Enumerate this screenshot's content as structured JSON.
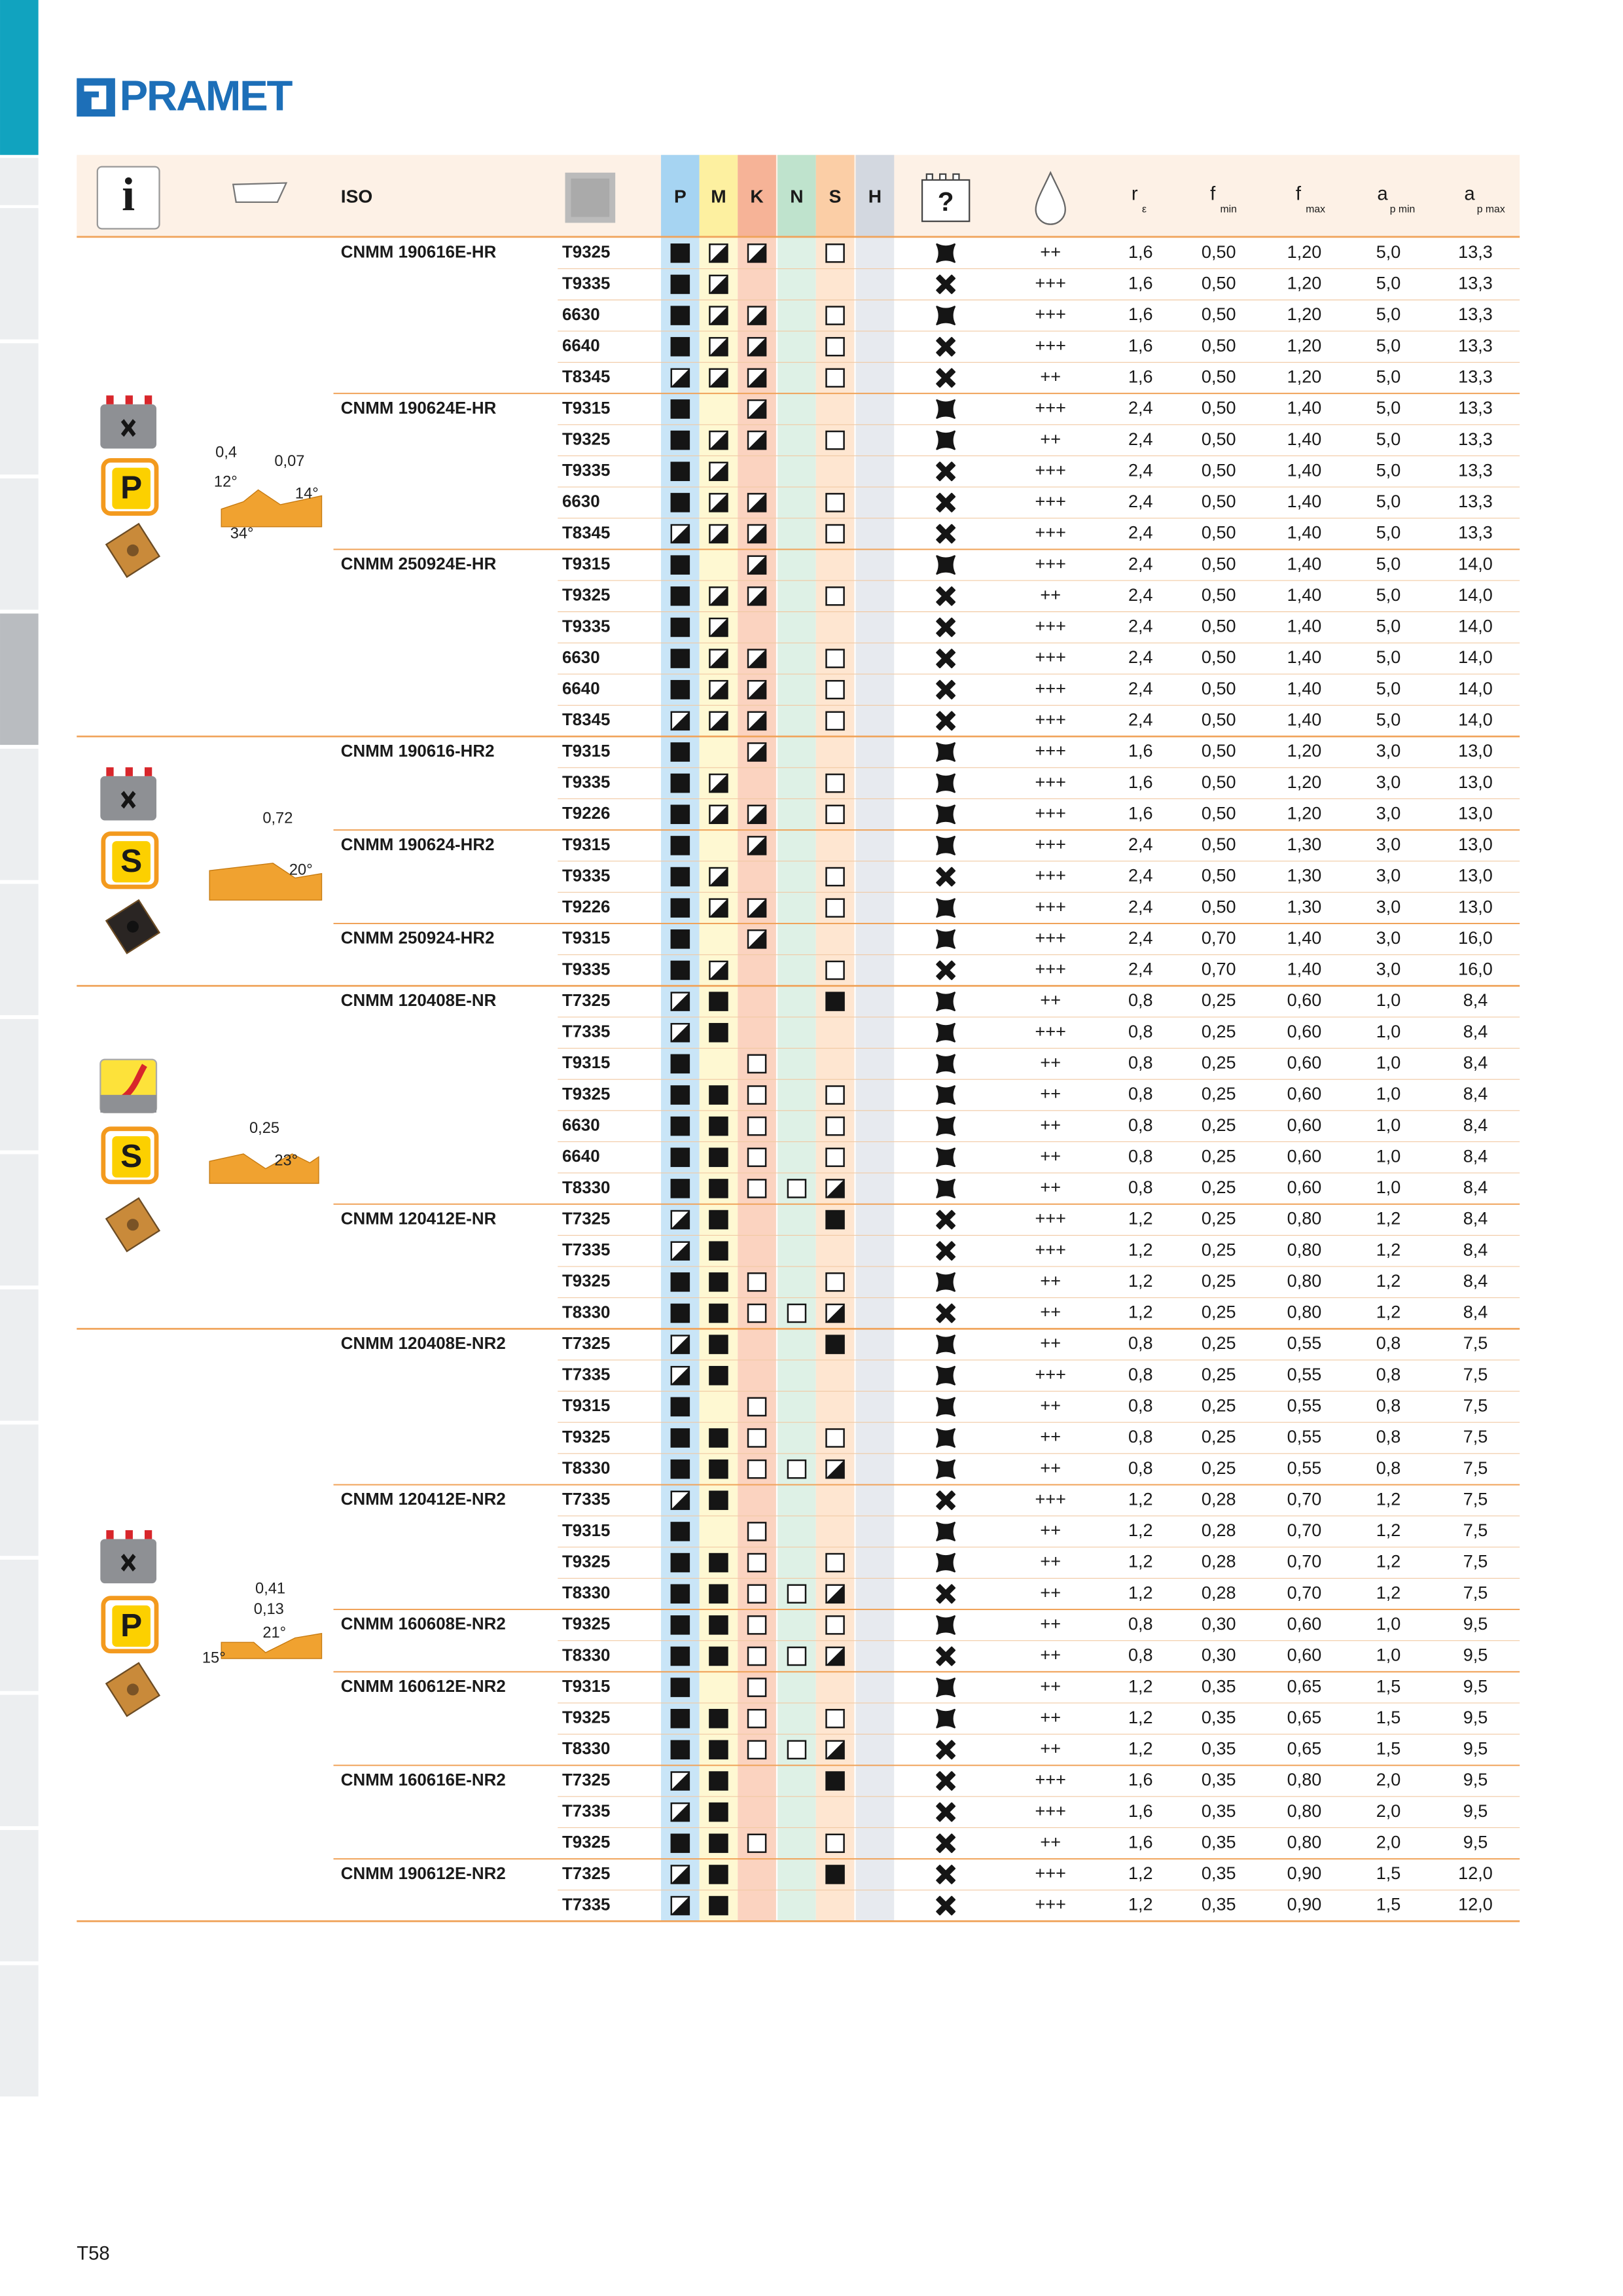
{
  "header": {
    "logo": "PRAMET",
    "iso": "ISO",
    "materials": [
      "P",
      "M",
      "K",
      "N",
      "S",
      "H"
    ],
    "params": [
      {
        "main": "r",
        "sub": "ε"
      },
      {
        "main": "f",
        "sub": "min"
      },
      {
        "main": "f",
        "sub": "max"
      },
      {
        "main": "a",
        "sub": "p min"
      },
      {
        "main": "a",
        "sub": "p max"
      }
    ]
  },
  "sections": [
    {
      "badge": "P",
      "diagram": [
        "0,4",
        "0,07",
        "12°",
        "14°",
        "34°"
      ],
      "groups": [
        {
          "iso": "CNMM 190616E-HR",
          "rows": [
            [
              "T9325",
              "F",
              "D",
              "D",
              null,
              "E",
              null,
              "wave",
              "++",
              "1,6",
              "0,50",
              "1,20",
              "5,0",
              "13,3"
            ],
            [
              "T9335",
              "F",
              "D",
              null,
              null,
              null,
              null,
              "cross",
              "+++",
              "1,6",
              "0,50",
              "1,20",
              "5,0",
              "13,3"
            ],
            [
              "6630",
              "F",
              "D",
              "D",
              null,
              "E",
              null,
              "wave",
              "+++",
              "1,6",
              "0,50",
              "1,20",
              "5,0",
              "13,3"
            ],
            [
              "6640",
              "F",
              "D",
              "D",
              null,
              "E",
              null,
              "cross",
              "+++",
              "1,6",
              "0,50",
              "1,20",
              "5,0",
              "13,3"
            ],
            [
              "T8345",
              "D",
              "D",
              "D",
              null,
              "E",
              null,
              "cross",
              "++",
              "1,6",
              "0,50",
              "1,20",
              "5,0",
              "13,3"
            ]
          ]
        },
        {
          "iso": "CNMM 190624E-HR",
          "rows": [
            [
              "T9315",
              "F",
              null,
              "D",
              null,
              null,
              null,
              "wave",
              "+++",
              "2,4",
              "0,50",
              "1,40",
              "5,0",
              "13,3"
            ],
            [
              "T9325",
              "F",
              "D",
              "D",
              null,
              "E",
              null,
              "wave",
              "++",
              "2,4",
              "0,50",
              "1,40",
              "5,0",
              "13,3"
            ],
            [
              "T9335",
              "F",
              "D",
              null,
              null,
              null,
              null,
              "cross",
              "+++",
              "2,4",
              "0,50",
              "1,40",
              "5,0",
              "13,3"
            ],
            [
              "6630",
              "F",
              "D",
              "D",
              null,
              "E",
              null,
              "cross",
              "+++",
              "2,4",
              "0,50",
              "1,40",
              "5,0",
              "13,3"
            ],
            [
              "T8345",
              "D",
              "D",
              "D",
              null,
              "E",
              null,
              "cross",
              "+++",
              "2,4",
              "0,50",
              "1,40",
              "5,0",
              "13,3"
            ]
          ]
        },
        {
          "iso": "CNMM 250924E-HR",
          "rows": [
            [
              "T9315",
              "F",
              null,
              "D",
              null,
              null,
              null,
              "wave",
              "+++",
              "2,4",
              "0,50",
              "1,40",
              "5,0",
              "14,0"
            ],
            [
              "T9325",
              "F",
              "D",
              "D",
              null,
              "E",
              null,
              "cross",
              "++",
              "2,4",
              "0,50",
              "1,40",
              "5,0",
              "14,0"
            ],
            [
              "T9335",
              "F",
              "D",
              null,
              null,
              null,
              null,
              "cross",
              "+++",
              "2,4",
              "0,50",
              "1,40",
              "5,0",
              "14,0"
            ],
            [
              "6630",
              "F",
              "D",
              "D",
              null,
              "E",
              null,
              "cross",
              "+++",
              "2,4",
              "0,50",
              "1,40",
              "5,0",
              "14,0"
            ],
            [
              "6640",
              "F",
              "D",
              "D",
              null,
              "E",
              null,
              "cross",
              "+++",
              "2,4",
              "0,50",
              "1,40",
              "5,0",
              "14,0"
            ],
            [
              "T8345",
              "D",
              "D",
              "D",
              null,
              "E",
              null,
              "cross",
              "+++",
              "2,4",
              "0,50",
              "1,40",
              "5,0",
              "14,0"
            ]
          ]
        }
      ]
    },
    {
      "badge": "S",
      "diagram": [
        "0,72",
        "20°"
      ],
      "groups": [
        {
          "iso": "CNMM 190616-HR2",
          "rows": [
            [
              "T9315",
              "F",
              null,
              "D",
              null,
              null,
              null,
              "wave",
              "+++",
              "1,6",
              "0,50",
              "1,20",
              "3,0",
              "13,0"
            ],
            [
              "T9335",
              "F",
              "D",
              null,
              null,
              "E",
              null,
              "wave",
              "+++",
              "1,6",
              "0,50",
              "1,20",
              "3,0",
              "13,0"
            ],
            [
              "T9226",
              "F",
              "D",
              "D",
              null,
              "E",
              null,
              "wave",
              "+++",
              "1,6",
              "0,50",
              "1,20",
              "3,0",
              "13,0"
            ]
          ]
        },
        {
          "iso": "CNMM 190624-HR2",
          "rows": [
            [
              "T9315",
              "F",
              null,
              "D",
              null,
              null,
              null,
              "wave",
              "+++",
              "2,4",
              "0,50",
              "1,30",
              "3,0",
              "13,0"
            ],
            [
              "T9335",
              "F",
              "D",
              null,
              null,
              "E",
              null,
              "cross",
              "+++",
              "2,4",
              "0,50",
              "1,30",
              "3,0",
              "13,0"
            ],
            [
              "T9226",
              "F",
              "D",
              "D",
              null,
              "E",
              null,
              "wave",
              "+++",
              "2,4",
              "0,50",
              "1,30",
              "3,0",
              "13,0"
            ]
          ]
        },
        {
          "iso": "CNMM 250924-HR2",
          "rows": [
            [
              "T9315",
              "F",
              null,
              "D",
              null,
              null,
              null,
              "wave",
              "+++",
              "2,4",
              "0,70",
              "1,40",
              "3,0",
              "16,0"
            ],
            [
              "T9335",
              "F",
              "D",
              null,
              null,
              "E",
              null,
              "cross",
              "+++",
              "2,4",
              "0,70",
              "1,40",
              "3,0",
              "16,0"
            ]
          ]
        }
      ]
    },
    {
      "badge": "S",
      "diagram": [
        "0,25",
        "23°"
      ],
      "groups": [
        {
          "iso": "CNMM 120408E-NR",
          "rows": [
            [
              "T7325",
              "D",
              "F",
              null,
              null,
              "F",
              null,
              "wave",
              "++",
              "0,8",
              "0,25",
              "0,60",
              "1,0",
              "8,4"
            ],
            [
              "T7335",
              "D",
              "F",
              null,
              null,
              null,
              null,
              "wave",
              "+++",
              "0,8",
              "0,25",
              "0,60",
              "1,0",
              "8,4"
            ],
            [
              "T9315",
              "F",
              null,
              "E",
              null,
              null,
              null,
              "wave",
              "++",
              "0,8",
              "0,25",
              "0,60",
              "1,0",
              "8,4"
            ],
            [
              "T9325",
              "F",
              "F",
              "E",
              null,
              "E",
              null,
              "wave",
              "++",
              "0,8",
              "0,25",
              "0,60",
              "1,0",
              "8,4"
            ],
            [
              "6630",
              "F",
              "F",
              "E",
              null,
              "E",
              null,
              "wave",
              "++",
              "0,8",
              "0,25",
              "0,60",
              "1,0",
              "8,4"
            ],
            [
              "6640",
              "F",
              "F",
              "E",
              null,
              "E",
              null,
              "wave",
              "++",
              "0,8",
              "0,25",
              "0,60",
              "1,0",
              "8,4"
            ],
            [
              "T8330",
              "F",
              "F",
              "E",
              "E",
              "D",
              null,
              "wave",
              "++",
              "0,8",
              "0,25",
              "0,60",
              "1,0",
              "8,4"
            ]
          ]
        },
        {
          "iso": "CNMM 120412E-NR",
          "rows": [
            [
              "T7325",
              "D",
              "F",
              null,
              null,
              "F",
              null,
              "cross",
              "+++",
              "1,2",
              "0,25",
              "0,80",
              "1,2",
              "8,4"
            ],
            [
              "T7335",
              "D",
              "F",
              null,
              null,
              null,
              null,
              "cross",
              "+++",
              "1,2",
              "0,25",
              "0,80",
              "1,2",
              "8,4"
            ],
            [
              "T9325",
              "F",
              "F",
              "E",
              null,
              "E",
              null,
              "wave",
              "++",
              "1,2",
              "0,25",
              "0,80",
              "1,2",
              "8,4"
            ],
            [
              "T8330",
              "F",
              "F",
              "E",
              "E",
              "D",
              null,
              "cross",
              "++",
              "1,2",
              "0,25",
              "0,80",
              "1,2",
              "8,4"
            ]
          ]
        }
      ]
    },
    {
      "badge": "P",
      "diagram": [
        "0,41",
        "0,13",
        "21°",
        "15°"
      ],
      "groups": [
        {
          "iso": "CNMM 120408E-NR2",
          "rows": [
            [
              "T7325",
              "D",
              "F",
              null,
              null,
              "F",
              null,
              "wave",
              "++",
              "0,8",
              "0,25",
              "0,55",
              "0,8",
              "7,5"
            ],
            [
              "T7335",
              "D",
              "F",
              null,
              null,
              null,
              null,
              "wave",
              "+++",
              "0,8",
              "0,25",
              "0,55",
              "0,8",
              "7,5"
            ],
            [
              "T9315",
              "F",
              null,
              "E",
              null,
              null,
              null,
              "wave",
              "++",
              "0,8",
              "0,25",
              "0,55",
              "0,8",
              "7,5"
            ],
            [
              "T9325",
              "F",
              "F",
              "E",
              null,
              "E",
              null,
              "wave",
              "++",
              "0,8",
              "0,25",
              "0,55",
              "0,8",
              "7,5"
            ],
            [
              "T8330",
              "F",
              "F",
              "E",
              "E",
              "D",
              null,
              "wave",
              "++",
              "0,8",
              "0,25",
              "0,55",
              "0,8",
              "7,5"
            ]
          ]
        },
        {
          "iso": "CNMM 120412E-NR2",
          "rows": [
            [
              "T7335",
              "D",
              "F",
              null,
              null,
              null,
              null,
              "cross",
              "+++",
              "1,2",
              "0,28",
              "0,70",
              "1,2",
              "7,5"
            ],
            [
              "T9315",
              "F",
              null,
              "E",
              null,
              null,
              null,
              "wave",
              "++",
              "1,2",
              "0,28",
              "0,70",
              "1,2",
              "7,5"
            ],
            [
              "T9325",
              "F",
              "F",
              "E",
              null,
              "E",
              null,
              "wave",
              "++",
              "1,2",
              "0,28",
              "0,70",
              "1,2",
              "7,5"
            ],
            [
              "T8330",
              "F",
              "F",
              "E",
              "E",
              "D",
              null,
              "cross",
              "++",
              "1,2",
              "0,28",
              "0,70",
              "1,2",
              "7,5"
            ]
          ]
        },
        {
          "iso": "CNMM 160608E-NR2",
          "rows": [
            [
              "T9325",
              "F",
              "F",
              "E",
              null,
              "E",
              null,
              "wave",
              "++",
              "0,8",
              "0,30",
              "0,60",
              "1,0",
              "9,5"
            ],
            [
              "T8330",
              "F",
              "F",
              "E",
              "E",
              "D",
              null,
              "cross",
              "++",
              "0,8",
              "0,30",
              "0,60",
              "1,0",
              "9,5"
            ]
          ]
        },
        {
          "iso": "CNMM 160612E-NR2",
          "rows": [
            [
              "T9315",
              "F",
              null,
              "E",
              null,
              null,
              null,
              "wave",
              "++",
              "1,2",
              "0,35",
              "0,65",
              "1,5",
              "9,5"
            ],
            [
              "T9325",
              "F",
              "F",
              "E",
              null,
              "E",
              null,
              "wave",
              "++",
              "1,2",
              "0,35",
              "0,65",
              "1,5",
              "9,5"
            ],
            [
              "T8330",
              "F",
              "F",
              "E",
              "E",
              "D",
              null,
              "cross",
              "++",
              "1,2",
              "0,35",
              "0,65",
              "1,5",
              "9,5"
            ]
          ]
        },
        {
          "iso": "CNMM 160616E-NR2",
          "rows": [
            [
              "T7325",
              "D",
              "F",
              null,
              null,
              "F",
              null,
              "cross",
              "+++",
              "1,6",
              "0,35",
              "0,80",
              "2,0",
              "9,5"
            ],
            [
              "T7335",
              "D",
              "F",
              null,
              null,
              null,
              null,
              "cross",
              "+++",
              "1,6",
              "0,35",
              "0,80",
              "2,0",
              "9,5"
            ],
            [
              "T9325",
              "F",
              "F",
              "E",
              null,
              "E",
              null,
              "cross",
              "++",
              "1,6",
              "0,35",
              "0,80",
              "2,0",
              "9,5"
            ]
          ]
        },
        {
          "iso": "CNMM 190612E-NR2",
          "rows": [
            [
              "T7325",
              "D",
              "F",
              null,
              null,
              "F",
              null,
              "cross",
              "+++",
              "1,2",
              "0,35",
              "0,90",
              "1,5",
              "12,0"
            ],
            [
              "T7335",
              "D",
              "F",
              null,
              null,
              null,
              null,
              "cross",
              "+++",
              "1,2",
              "0,35",
              "0,90",
              "1,5",
              "12,0"
            ]
          ]
        }
      ]
    }
  ],
  "footer": {
    "page": "T58"
  }
}
